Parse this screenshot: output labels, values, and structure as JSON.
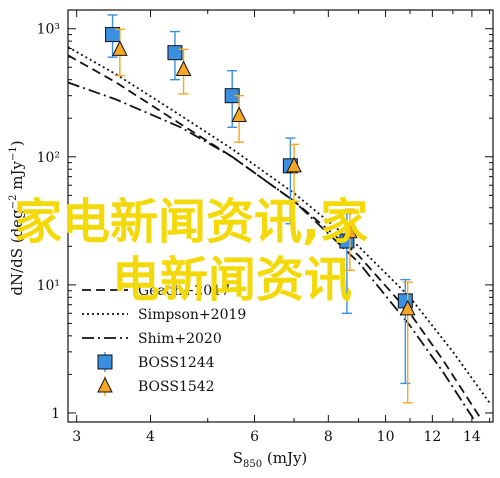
{
  "chart_data": {
    "type": "scatter",
    "title": "",
    "xlabel": "S",
    "xlabel_sub": "850",
    "xlabel_unit": " (mJy)",
    "ylabel": "dN/dS (deg",
    "ylabel_sup1": "−2",
    "ylabel_mid": " mJy",
    "ylabel_sup2": "−1",
    "ylabel_end": ")",
    "xscale": "log",
    "yscale": "log",
    "xlim": [
      2.9,
      15.2
    ],
    "ylim": [
      0.85,
      1400
    ],
    "xticks": [
      3,
      4,
      6,
      8,
      10,
      12,
      14
    ],
    "xtick_labels": [
      "3",
      "4",
      "6",
      "8",
      "10",
      "12",
      "14"
    ],
    "yticks": [
      1,
      10,
      100,
      1000
    ],
    "ytick_labels": [
      "1",
      "10¹",
      "10²",
      "10³"
    ],
    "legend_position": "lower-center",
    "lines": [
      {
        "name": "Geach+2017",
        "style": "dashed",
        "x": [
          2.9,
          3.5,
          4.5,
          5.5,
          7,
          9,
          11,
          12.5,
          14.5
        ],
        "y": [
          620,
          380,
          180,
          100,
          45,
          17,
          6,
          2.6,
          0.9
        ]
      },
      {
        "name": "Simpson+2019",
        "style": "dotted",
        "x": [
          2.9,
          3.5,
          4.5,
          5.5,
          7,
          9,
          11,
          13,
          15
        ],
        "y": [
          720,
          440,
          210,
          115,
          52,
          20,
          8,
          3,
          1.2
        ]
      },
      {
        "name": "Shim+2020",
        "style": "dashdot",
        "x": [
          2.9,
          3.5,
          4.5,
          5.5,
          7,
          9,
          11,
          12.5,
          14.2
        ],
        "y": [
          380,
          280,
          170,
          100,
          45,
          15,
          4.8,
          2.1,
          0.85
        ]
      }
    ],
    "series": [
      {
        "name": "BOSS1244",
        "marker": "square",
        "color": "#3a8fe0",
        "x": [
          3.45,
          4.4,
          5.5,
          6.9,
          8.6,
          10.8
        ],
        "y": [
          900,
          650,
          300,
          85,
          22,
          7.5
        ],
        "yerr_low": [
          300,
          250,
          130,
          55,
          16,
          5.8
        ],
        "yerr_high": [
          380,
          300,
          170,
          55,
          14,
          3.5
        ]
      },
      {
        "name": "BOSS1542",
        "marker": "triangle",
        "color": "#f5a623",
        "x": [
          3.55,
          4.55,
          5.65,
          7.0,
          8.7,
          10.9
        ],
        "y": [
          690,
          480,
          210,
          85,
          26,
          6.5
        ],
        "yerr_low": [
          260,
          170,
          80,
          40,
          13,
          5.3
        ],
        "yerr_high": [
          300,
          210,
          90,
          40,
          13,
          4
        ]
      }
    ]
  },
  "watermark": {
    "line1": "家电新闻资讯,家",
    "line2": "电新闻资讯"
  }
}
